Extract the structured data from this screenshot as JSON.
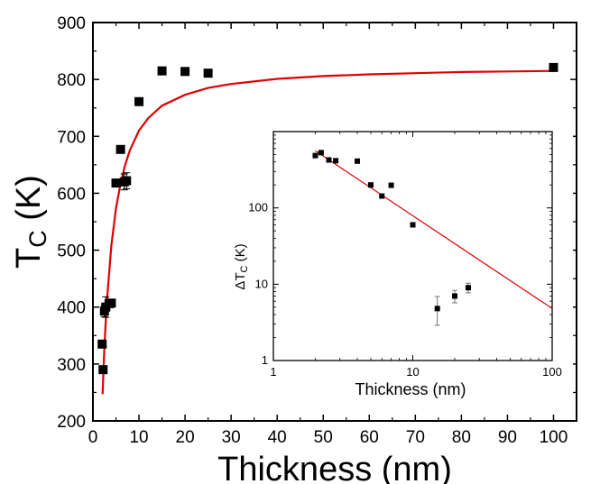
{
  "chart_data": [
    {
      "id": "main",
      "type": "scatter",
      "xlabel": "Thickness (nm)",
      "ylabel": {
        "main": "T",
        "sub": "C",
        "unit": " (K)"
      },
      "xlim": [
        0,
        105
      ],
      "ylim": [
        200,
        900
      ],
      "xticks": [
        0,
        10,
        20,
        30,
        40,
        50,
        60,
        70,
        80,
        90,
        100
      ],
      "yticks": [
        200,
        300,
        400,
        500,
        600,
        700,
        800,
        900
      ],
      "colors": {
        "points": "#000000",
        "fit": "#e00000",
        "axes": "#000000"
      },
      "series": [
        {
          "name": "data",
          "kind": "points",
          "points": [
            {
              "x": 2,
              "y": 335
            },
            {
              "x": 2.2,
              "y": 290
            },
            {
              "x": 2.5,
              "y": 393,
              "err": 10
            },
            {
              "x": 2.8,
              "y": 400,
              "err": 18
            },
            {
              "x": 3.5,
              "y": 406
            },
            {
              "x": 4,
              "y": 407
            },
            {
              "x": 5,
              "y": 618
            },
            {
              "x": 6,
              "y": 677
            },
            {
              "x": 6.8,
              "y": 620,
              "err": 14
            },
            {
              "x": 7.3,
              "y": 622,
              "err": 14
            },
            {
              "x": 10,
              "y": 761
            },
            {
              "x": 15,
              "y": 815
            },
            {
              "x": 20,
              "y": 814
            },
            {
              "x": 25,
              "y": 811
            },
            {
              "x": 100,
              "y": 821
            }
          ]
        },
        {
          "name": "fit",
          "kind": "line",
          "points": [
            {
              "x": 2.1,
              "y": 247
            },
            {
              "x": 2.5,
              "y": 333
            },
            {
              "x": 3,
              "y": 407
            },
            {
              "x": 4,
              "y": 508
            },
            {
              "x": 5,
              "y": 573
            },
            {
              "x": 6,
              "y": 617
            },
            {
              "x": 7,
              "y": 650
            },
            {
              "x": 8,
              "y": 675
            },
            {
              "x": 10,
              "y": 710
            },
            {
              "x": 12,
              "y": 732
            },
            {
              "x": 15,
              "y": 754
            },
            {
              "x": 20,
              "y": 773
            },
            {
              "x": 25,
              "y": 785
            },
            {
              "x": 30,
              "y": 792
            },
            {
              "x": 40,
              "y": 801
            },
            {
              "x": 50,
              "y": 806
            },
            {
              "x": 60,
              "y": 809
            },
            {
              "x": 70,
              "y": 811
            },
            {
              "x": 80,
              "y": 813
            },
            {
              "x": 90,
              "y": 814
            },
            {
              "x": 100,
              "y": 815
            }
          ]
        }
      ]
    },
    {
      "id": "inset",
      "type": "scatter",
      "scale": "log-log",
      "xlabel": "Thickness (nm)",
      "ylabel": {
        "main": "ΔT",
        "sub": "C",
        "unit": " (K)"
      },
      "xlim": [
        1,
        100
      ],
      "ylim": [
        1,
        1000
      ],
      "xticks": [
        {
          "value": 1,
          "label": "1"
        },
        {
          "value": 10,
          "label": "10"
        },
        {
          "value": 100,
          "label": "100"
        }
      ],
      "yticks": [
        {
          "value": 1,
          "label": "1"
        },
        {
          "value": 10,
          "label": "10"
        },
        {
          "value": 100,
          "label": "100"
        }
      ],
      "colors": {
        "points": "#000000",
        "fit": "#e00000",
        "errorbars": "#666666"
      },
      "series": [
        {
          "name": "data",
          "kind": "points",
          "points": [
            {
              "x": 2.0,
              "y": 485
            },
            {
              "x": 2.2,
              "y": 530
            },
            {
              "x": 2.5,
              "y": 425
            },
            {
              "x": 2.8,
              "y": 415
            },
            {
              "x": 4.0,
              "y": 410
            },
            {
              "x": 5.0,
              "y": 200
            },
            {
              "x": 6.0,
              "y": 143
            },
            {
              "x": 7.0,
              "y": 198
            },
            {
              "x": 10.0,
              "y": 60
            },
            {
              "x": 15.0,
              "y": 4.8,
              "errLow": 2.9,
              "errHigh": 6.9
            },
            {
              "x": 20.0,
              "y": 7.0,
              "errLow": 5.7,
              "errHigh": 8.3
            },
            {
              "x": 25.0,
              "y": 9.0,
              "errLow": 7.7,
              "errHigh": 10.3
            }
          ]
        },
        {
          "name": "fit",
          "kind": "line",
          "points": [
            {
              "x": 2.0,
              "y": 560
            },
            {
              "x": 100,
              "y": 4.8
            }
          ]
        }
      ]
    }
  ]
}
